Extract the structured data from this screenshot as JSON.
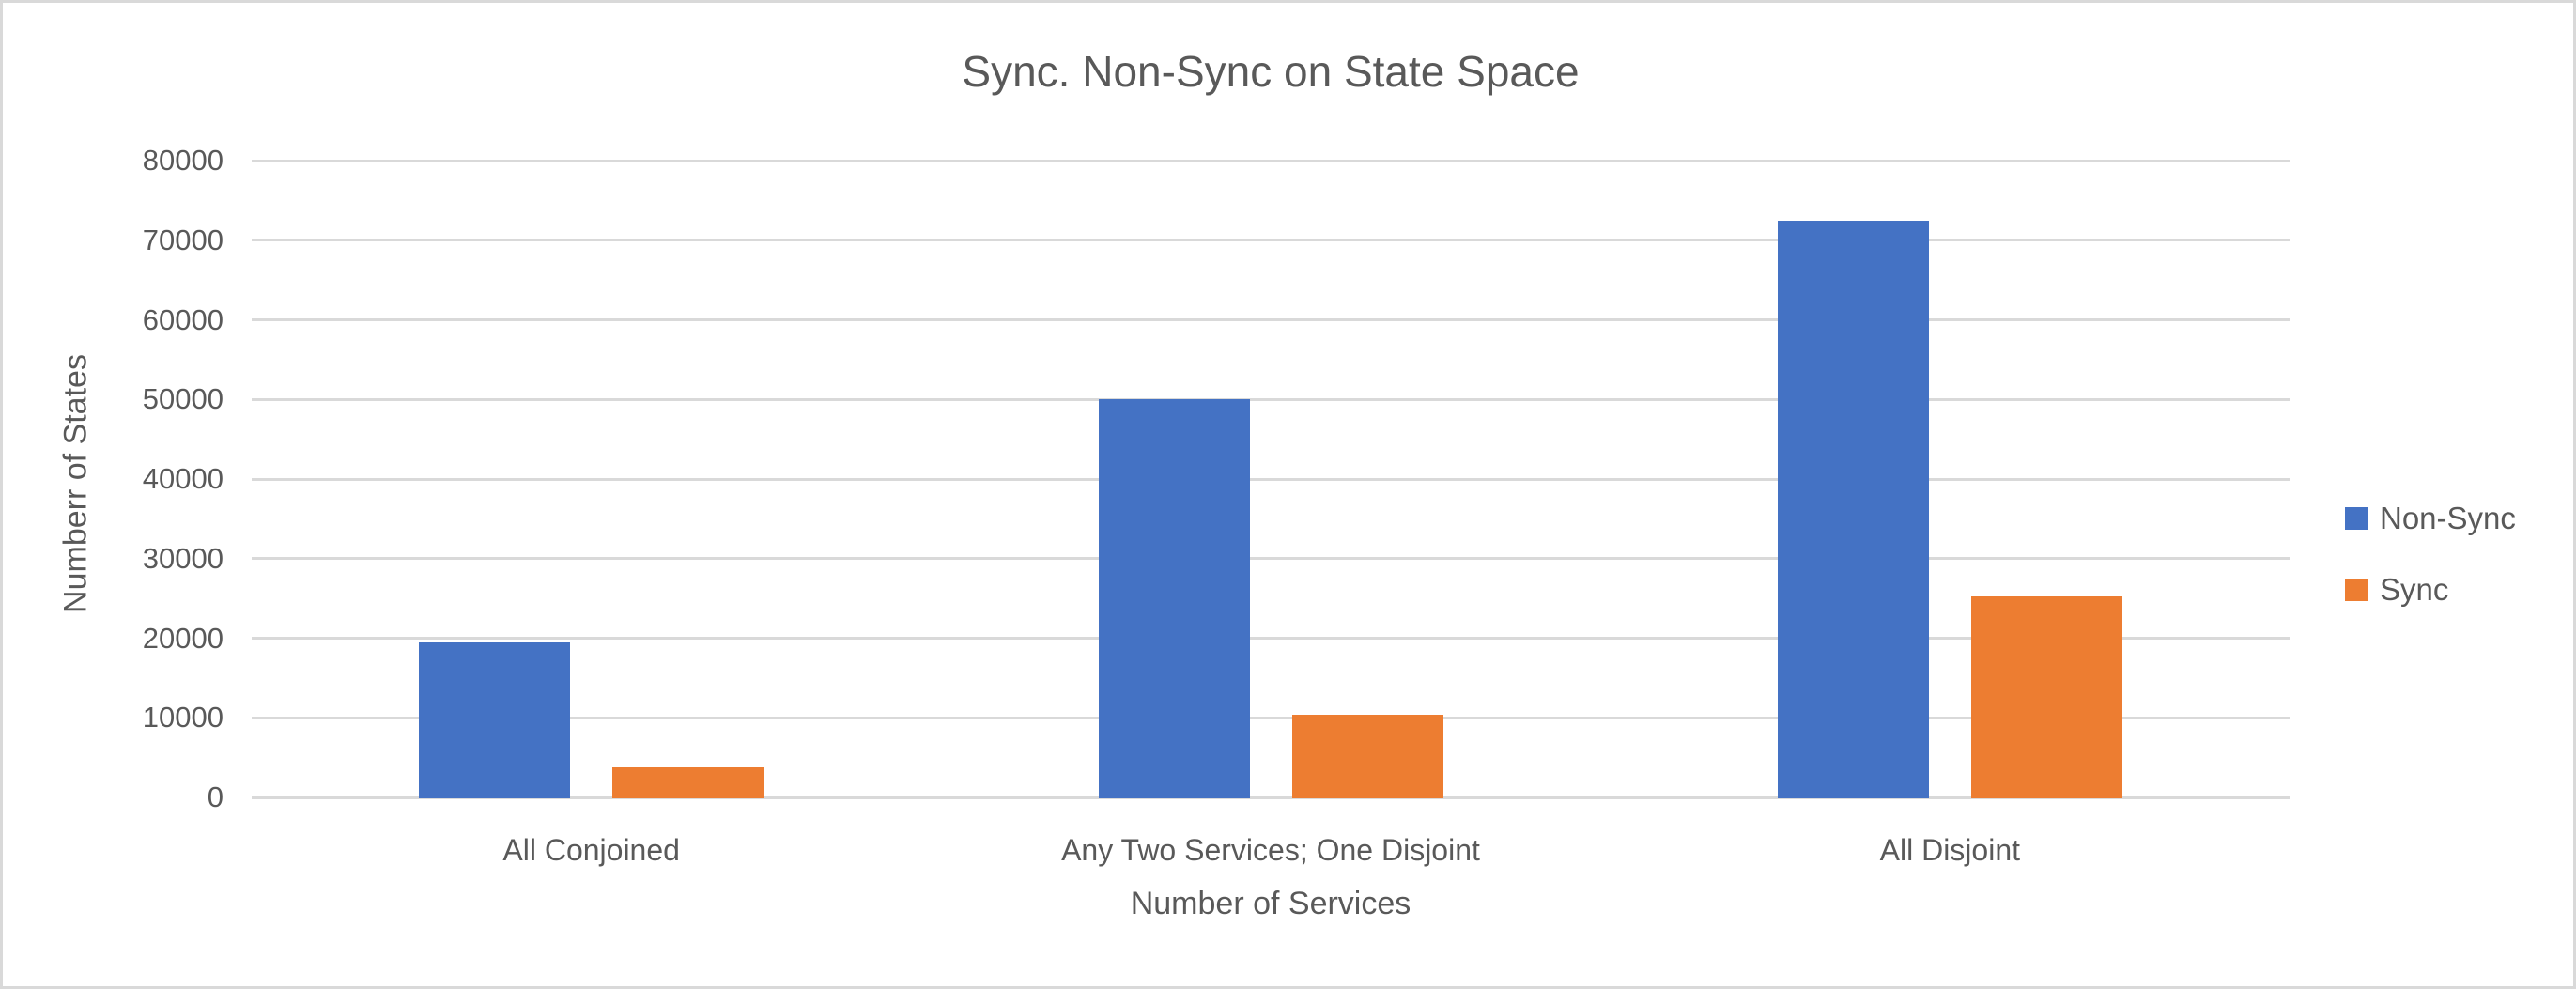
{
  "chart_data": {
    "type": "bar",
    "title": "Sync. Non-Sync on State Space",
    "xlabel": "Number of Services",
    "ylabel": "Numberr of States",
    "categories": [
      "All Conjoined",
      "Any Two Services; One Disjoint",
      "All Disjoint"
    ],
    "series": [
      {
        "name": "Non-Sync",
        "color": "#4472C4",
        "values": [
          19500,
          50000,
          72500
        ]
      },
      {
        "name": "Sync",
        "color": "#ED7D31",
        "values": [
          3800,
          10400,
          25300
        ]
      }
    ],
    "ylim": [
      0,
      80000
    ],
    "ytick_values": [
      0,
      10000,
      20000,
      30000,
      40000,
      50000,
      60000,
      70000,
      80000
    ],
    "grid": true,
    "legend_position": "right",
    "legend": [
      "Non-Sync",
      "Sync"
    ]
  },
  "colors": {
    "background": "#FFFFFF",
    "canvas_border": "#D9D9D9",
    "gridline": "#D9D9D9",
    "text": "#595959",
    "non_sync_blue": "#4472C4",
    "sync_orange": "#ED7D31"
  }
}
